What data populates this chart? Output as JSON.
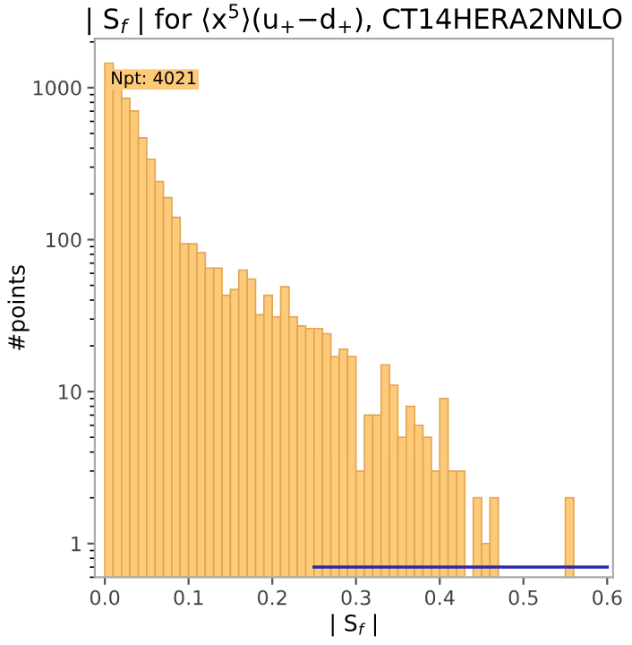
{
  "chart_data": {
    "type": "histogram",
    "title": "| S$_{f}$ | for ⟨x$^{5}$⟩(u$_{+}$−d$_{+}$), CT14HERA2NNLO",
    "xlabel": "| S$_{f}$ |",
    "ylabel": "#points",
    "annotations": [
      "Npt: 4021"
    ],
    "bins": [
      0,
      0.01,
      0.02,
      0.03,
      0.04,
      0.05,
      0.06,
      0.07,
      0.08,
      0.09,
      0.1,
      0.11,
      0.12,
      0.13,
      0.14,
      0.15,
      0.16,
      0.17,
      0.18,
      0.19,
      0.2,
      0.21,
      0.22,
      0.23,
      0.24,
      0.25,
      0.26,
      0.27,
      0.28,
      0.29,
      0.3,
      0.31,
      0.32,
      0.33,
      0.34,
      0.35,
      0.36,
      0.37,
      0.38,
      0.39,
      0.4,
      0.41,
      0.42,
      0.43,
      0.44,
      0.45,
      0.46,
      0.47,
      0.48,
      0.49,
      0.5,
      0.51,
      0.52,
      0.53,
      0.54,
      0.55,
      0.56
    ],
    "values": [
      1450,
      1020,
      853,
      703,
      468,
      338,
      241,
      189,
      140,
      94,
      94,
      82,
      65,
      65,
      43,
      47,
      63,
      55,
      32,
      43,
      31,
      49,
      31,
      27,
      26,
      26,
      24,
      17,
      19,
      17,
      3,
      7,
      7,
      15,
      11,
      5,
      8,
      6,
      5,
      3,
      9,
      3,
      3,
      null,
      2,
      1,
      2,
      null,
      null,
      null,
      null,
      null,
      null,
      null,
      null,
      2
    ],
    "color": "#fdca7a",
    "series": [
      {
        "type": "line",
        "x": [
          0.25,
          0.6
        ],
        "values": [
          0.7,
          0.7
        ],
        "color": "#2b2bb0"
      }
    ],
    "log": "y",
    "xlim": [
      -0.012,
      0.607
    ],
    "ylim": [
      0.6,
      2100
    ],
    "xticks": [
      {
        "value": 0,
        "label": "0.0"
      },
      0.1,
      0.2,
      0.3,
      0.4,
      0.5,
      0.6
    ],
    "yticks": [
      1,
      10,
      100,
      1000
    ],
    "grid": false,
    "legend": false
  }
}
